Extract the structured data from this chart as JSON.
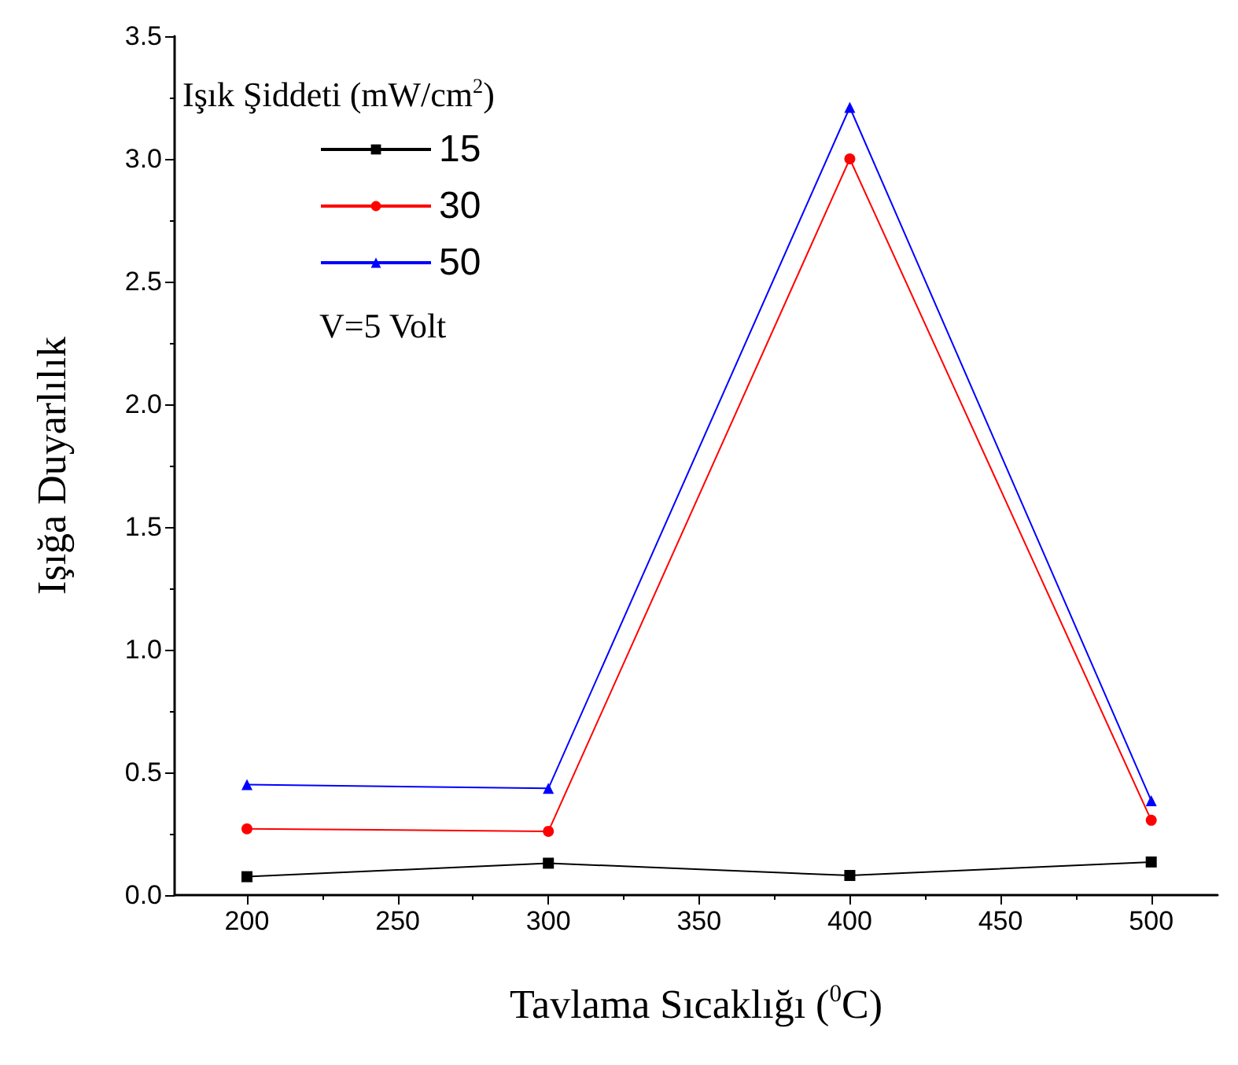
{
  "chart_data": {
    "type": "line",
    "xlabel": "Tavlama Sıcaklığı ($^{0}$C)",
    "ylabel": "Işığa Duyarlılık",
    "legend_title": "Işık Şiddeti (mW/cm$^{2}$)",
    "annotations": [
      "V=5 Volt"
    ],
    "x": [
      200,
      300,
      400,
      500
    ],
    "xlim": [
      176,
      522
    ],
    "xticks": [
      200,
      250,
      300,
      350,
      400,
      450,
      500
    ],
    "ylim": [
      0,
      3.5
    ],
    "yticks": [
      {
        "value": 0,
        "label": "0.0"
      },
      0.5,
      {
        "value": 1,
        "label": "1.0"
      },
      1.5,
      {
        "value": 2,
        "label": "2.0"
      },
      2.5,
      {
        "value": 3,
        "label": "3.0"
      },
      3.5
    ],
    "grid": false,
    "legend": "top left",
    "line_style": "solid",
    "series": [
      {
        "name": "15",
        "color": "#000000",
        "marker": "square",
        "values": [
          0.075,
          0.13,
          0.08,
          0.135
        ]
      },
      {
        "name": "30",
        "color": "#ff0000",
        "marker": "circle",
        "values": [
          0.27,
          0.26,
          3.0,
          0.305
        ]
      },
      {
        "name": "50",
        "color": "#0000ff",
        "marker": "triangle",
        "values": [
          0.45,
          0.435,
          3.21,
          0.385
        ]
      }
    ]
  }
}
